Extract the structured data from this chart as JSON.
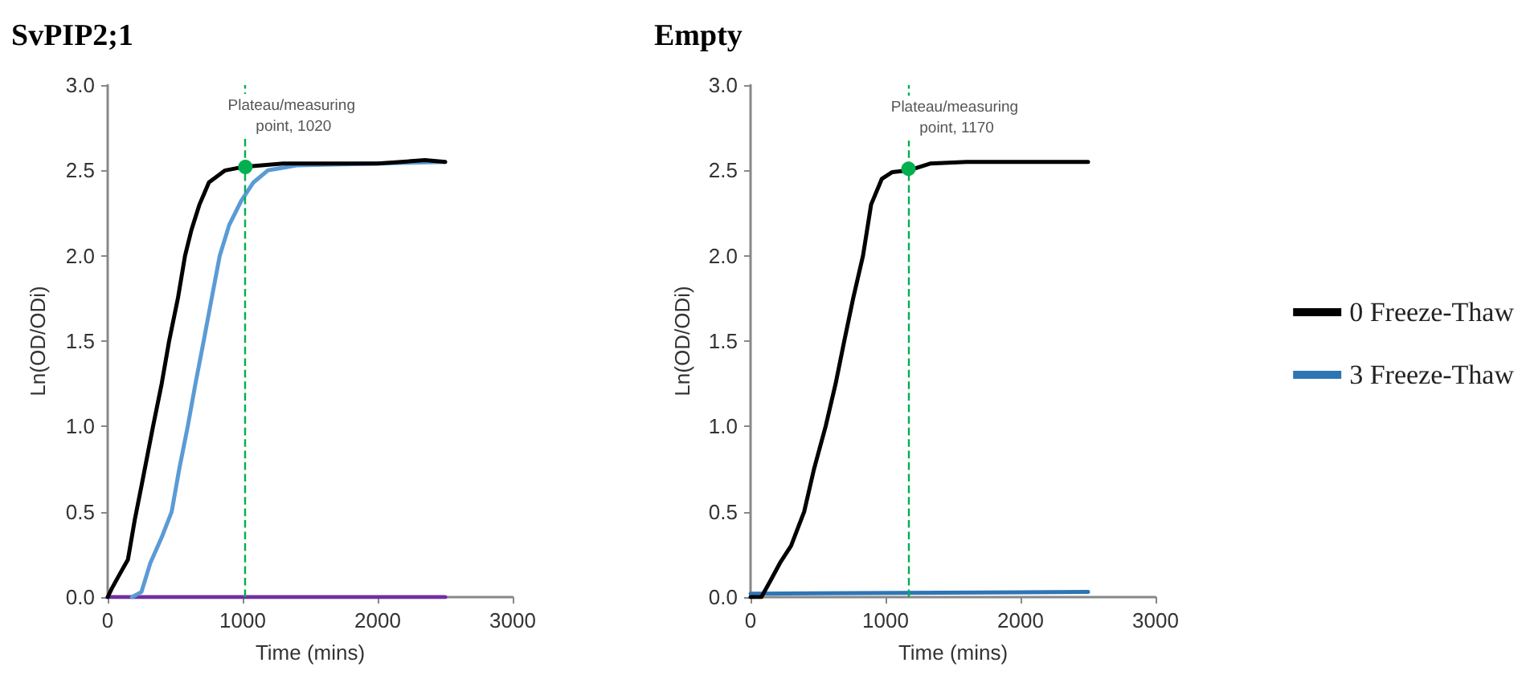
{
  "chart_data": [
    {
      "type": "line",
      "title": "SvPIP2;1",
      "xlabel": "Time (mins)",
      "ylabel": "Ln(OD/ODi)",
      "xlim": [
        0,
        3000
      ],
      "xticks": [
        0,
        1000,
        2000,
        3000
      ],
      "ylim": [
        0,
        3
      ],
      "yticks": [
        {
          "value": 0,
          "label": "0.0"
        },
        {
          "value": 0.5,
          "label": "0.5"
        },
        {
          "value": 1,
          "label": "1.0"
        },
        {
          "value": 1.5,
          "label": "1.5"
        },
        {
          "value": 2,
          "label": "2.0"
        },
        {
          "value": 2.5,
          "label": "2.5"
        },
        {
          "value": 3,
          "label": "3.0"
        }
      ],
      "grid": false,
      "legend": false,
      "marker": "none",
      "series": [
        {
          "color": "#000000",
          "x": [
            0,
            30,
            100,
            150,
            200,
            250,
            336,
            400,
            455,
            520,
            573,
            620,
            680,
            750,
            870,
            1000,
            1300,
            2000,
            2350,
            2500
          ],
          "values": [
            0,
            0.05,
            0.15,
            0.22,
            0.45,
            0.65,
            1.0,
            1.25,
            1.5,
            1.75,
            2.0,
            2.15,
            2.3,
            2.43,
            2.5,
            2.52,
            2.54,
            2.54,
            2.56,
            2.55
          ]
        },
        {
          "color": "#5b9bd5",
          "x": [
            180,
            250,
            316,
            400,
            474,
            530,
            593,
            650,
            711,
            770,
            830,
            900,
            988,
            1080,
            1186,
            1400,
            2000,
            2500
          ],
          "values": [
            0,
            0.03,
            0.2,
            0.35,
            0.5,
            0.75,
            1.0,
            1.25,
            1.5,
            1.75,
            2.0,
            2.18,
            2.32,
            2.43,
            2.5,
            2.53,
            2.54,
            2.55
          ]
        },
        {
          "color": "#7030a0",
          "x": [
            0,
            2500
          ],
          "values": [
            0,
            0
          ]
        }
      ],
      "ref_lines": [
        {
          "axis": "x",
          "value": 1020,
          "color": "#00b050",
          "line_style": "dashed"
        }
      ],
      "annotations": [
        {
          "text": "Plateau/measuring point, 1020",
          "x": 1020,
          "y": 2.52
        }
      ]
    },
    {
      "type": "line",
      "title": "Empty",
      "xlabel": "Time (mins)",
      "ylabel": "Ln(OD/ODi)",
      "xlim": [
        0,
        3000
      ],
      "xticks": [
        0,
        1000,
        2000,
        3000
      ],
      "ylim": [
        0,
        3
      ],
      "yticks": [
        {
          "value": 0,
          "label": "0.0"
        },
        {
          "value": 0.5,
          "label": "0.5"
        },
        {
          "value": 1,
          "label": "1.0"
        },
        {
          "value": 1.5,
          "label": "1.5"
        },
        {
          "value": 2,
          "label": "2.0"
        },
        {
          "value": 2.5,
          "label": "2.5"
        },
        {
          "value": 3,
          "label": "3.0"
        }
      ],
      "grid": false,
      "legend": "right",
      "marker": "none",
      "series": [
        {
          "name": "0 Freeze-Thaw",
          "color": "#000000",
          "x": [
            0,
            80,
            150,
            218,
            300,
            397,
            470,
            556,
            630,
            694,
            760,
            833,
            893,
            972,
            1050,
            1170,
            1250,
            1330,
            1600,
            2500
          ],
          "values": [
            0,
            0,
            0.1,
            0.2,
            0.3,
            0.5,
            0.75,
            1.0,
            1.25,
            1.5,
            1.75,
            2.0,
            2.3,
            2.45,
            2.49,
            2.5,
            2.52,
            2.54,
            2.55,
            2.55
          ]
        },
        {
          "name": "3 Freeze-Thaw",
          "color": "#2e75b6",
          "x": [
            0,
            2500
          ],
          "values": [
            0.02,
            0.03
          ]
        }
      ],
      "ref_lines": [
        {
          "axis": "x",
          "value": 1170,
          "color": "#00b050",
          "line_style": "dashed"
        }
      ],
      "annotations": [
        {
          "text": "Plateau/measuring point, 1170",
          "x": 1170,
          "y": 2.51
        }
      ]
    }
  ]
}
